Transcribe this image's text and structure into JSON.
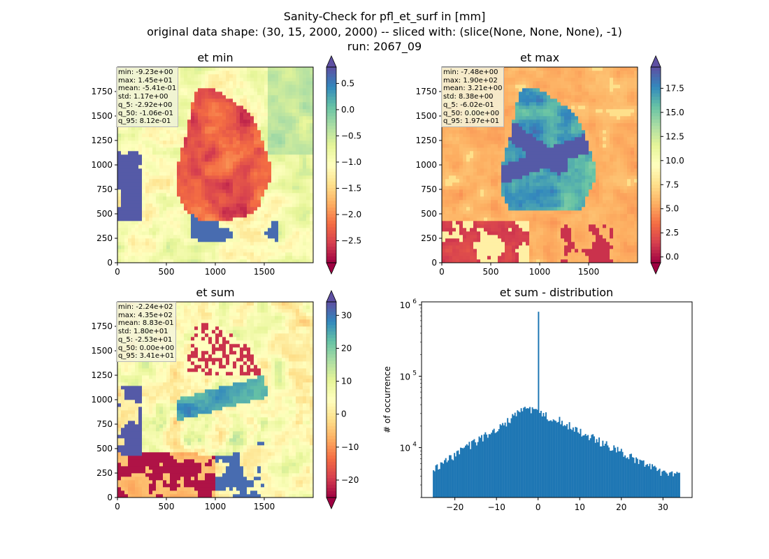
{
  "figure": {
    "title_line1": "Sanity-Check for pfl_et_surf in [mm]",
    "title_line2": "original data shape: (30, 15, 2000, 2000) -- sliced with: (slice(None, None, None), -1)",
    "title_line3": "run: 2067_09"
  },
  "colors": {
    "hist_bar": "#1f77b4",
    "colormap": "Spectral"
  },
  "chart_data": [
    {
      "type": "heatmap",
      "title": "et min",
      "xticks": [
        0,
        500,
        1000,
        1500
      ],
      "yticks": [
        0,
        250,
        500,
        750,
        1000,
        1250,
        1500,
        1750
      ],
      "xlim": [
        0,
        2000
      ],
      "ylim": [
        0,
        2000
      ],
      "colorbar": {
        "min": -2.92,
        "max": 0.812,
        "ticks": [
          0.5,
          0.0,
          -0.5,
          -1.0,
          -1.5,
          -2.0,
          -2.5
        ],
        "tick_labels": [
          "0.5",
          "0.0",
          "−0.5",
          "−1.0",
          "−1.5",
          "−2.0",
          "−2.5"
        ],
        "extend": "both"
      },
      "stats": [
        "min: -9.23e+00",
        "max: 1.45e+01",
        "mean: -5.41e-01",
        "std: 1.17e+00",
        "q_5: -2.92e+00",
        "q_50: -1.06e-01",
        "q_95: 8.12e-01"
      ]
    },
    {
      "type": "heatmap",
      "title": "et max",
      "xticks": [
        0,
        500,
        1000,
        1500
      ],
      "yticks": [
        0,
        250,
        500,
        750,
        1000,
        1250,
        1500,
        1750
      ],
      "xlim": [
        0,
        2000
      ],
      "ylim": [
        0,
        2000
      ],
      "colorbar": {
        "min": -0.602,
        "max": 19.7,
        "ticks": [
          17.5,
          15.0,
          12.5,
          10.0,
          7.5,
          5.0,
          2.5,
          0.0
        ],
        "tick_labels": [
          "17.5",
          "15.0",
          "12.5",
          "10.0",
          "7.5",
          "5.0",
          "2.5",
          "0.0"
        ],
        "extend": "both"
      },
      "stats": [
        "min: -7.48e+00",
        "max: 1.90e+02",
        "mean: 3.21e+00",
        "std: 8.38e+00",
        "q_5: -6.02e-01",
        "q_50: 0.00e+00",
        "q_95: 1.97e+01"
      ]
    },
    {
      "type": "heatmap",
      "title": "et sum",
      "xticks": [
        0,
        500,
        1000,
        1500
      ],
      "yticks": [
        0,
        250,
        500,
        750,
        1000,
        1250,
        1500,
        1750
      ],
      "xlim": [
        0,
        2000
      ],
      "ylim": [
        0,
        2000
      ],
      "colorbar": {
        "min": -25.3,
        "max": 34.1,
        "ticks": [
          30,
          20,
          10,
          0,
          -10,
          -20
        ],
        "tick_labels": [
          "30",
          "20",
          "10",
          "0",
          "−10",
          "−20"
        ],
        "extend": "both"
      },
      "stats": [
        "min: -2.24e+02",
        "max: 4.35e+02",
        "mean: 8.83e-01",
        "std: 1.80e+01",
        "q_5: -2.53e+01",
        "q_50: 0.00e+00",
        "q_95: 3.41e+01"
      ]
    },
    {
      "type": "bar",
      "title": "et sum - distribution",
      "ylabel": "# of occurrence",
      "xlabel": "",
      "yscale": "log",
      "ylim": [
        2000,
        1100000
      ],
      "xlim": [
        -28,
        37
      ],
      "xticks": [
        -20,
        -10,
        0,
        10,
        20,
        30
      ],
      "xtick_labels": [
        "−20",
        "−10",
        "0",
        "10",
        "20",
        "30"
      ],
      "yticks": [
        10000,
        100000,
        1000000
      ],
      "ytick_labels": [
        "10^4",
        "10^5",
        "10^6"
      ],
      "bins": {
        "start": -25.3,
        "end": 34.1
      },
      "anchors": [
        [
          -25.3,
          5000
        ],
        [
          -20,
          8000
        ],
        [
          -15,
          12000
        ],
        [
          -10,
          18000
        ],
        [
          -5,
          30000
        ],
        [
          -3.5,
          35000
        ],
        [
          -1,
          32000
        ],
        [
          0,
          30000
        ],
        [
          3,
          26000
        ],
        [
          5,
          24000
        ],
        [
          10,
          17000
        ],
        [
          15,
          12000
        ],
        [
          20,
          8500
        ],
        [
          25,
          6000
        ],
        [
          30,
          4500
        ],
        [
          34.1,
          4000
        ]
      ],
      "spike": {
        "x": 0,
        "value": 800000
      }
    }
  ]
}
